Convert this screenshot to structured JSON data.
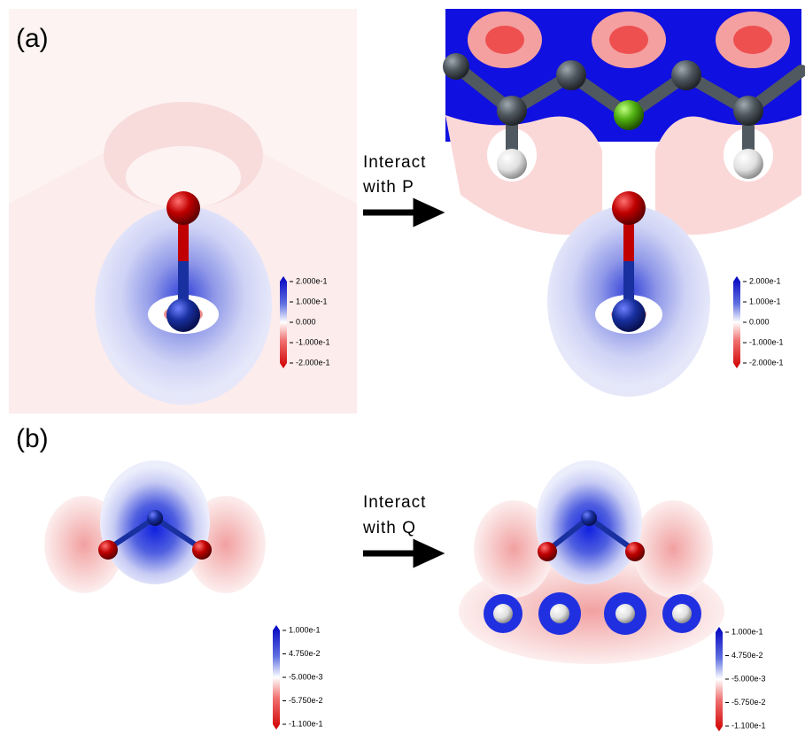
{
  "panels": [
    {
      "label": "(a)",
      "arrow_text": [
        "Interact",
        "with P"
      ],
      "colorbars": [
        [
          "2.000e-1",
          "1.000e-1",
          "0.000",
          "-1.000e-1",
          "-2.000e-1"
        ],
        [
          "2.000e-1",
          "1.000e-1",
          "0.000",
          "-1.000e-1",
          "-2.000e-1"
        ]
      ]
    },
    {
      "label": "(b)",
      "arrow_text": [
        "Interact",
        "with Q"
      ],
      "colorbars": [
        [
          "1.000e-1",
          "4.750e-2",
          "-5.000e-3",
          "-5.750e-2",
          "-1.100e-1"
        ],
        [
          "1.000e-1",
          "4.750e-2",
          "-5.000e-3",
          "-5.750e-2",
          "-1.100e-1"
        ]
      ]
    }
  ]
}
